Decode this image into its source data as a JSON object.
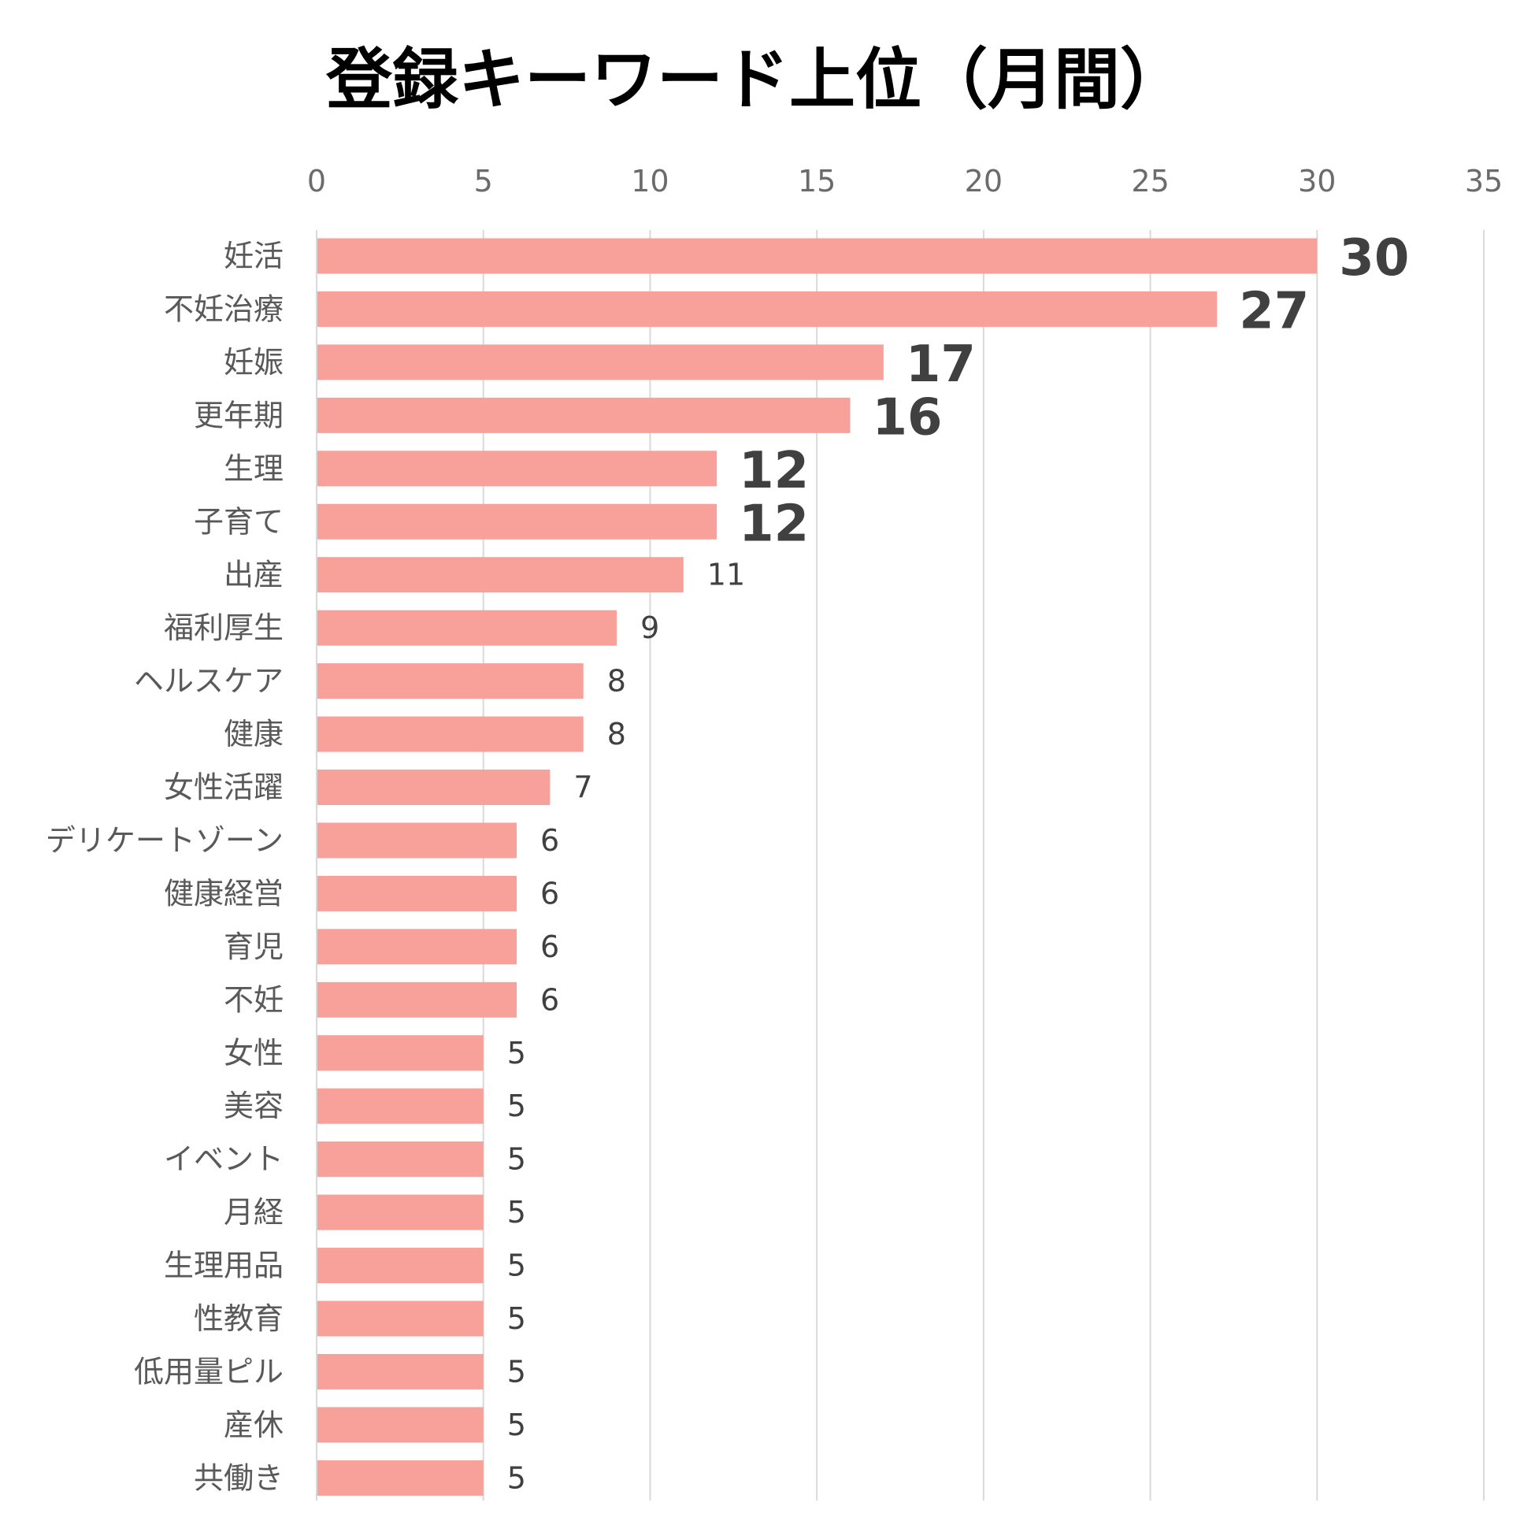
{
  "chart_data": {
    "type": "bar",
    "orientation": "horizontal",
    "title": "登録キーワード上位（月間）",
    "xlabel": "",
    "ylabel": "",
    "xlim": [
      0,
      35
    ],
    "x_ticks": [
      0,
      5,
      10,
      15,
      20,
      25,
      30,
      35
    ],
    "x_axis_position": "top",
    "grid": true,
    "legend": "none",
    "bar_color": "#f8a09a",
    "categories": [
      "妊活",
      "不妊治療",
      "妊娠",
      "更年期",
      "生理",
      "子育て",
      "出産",
      "福利厚生",
      "ヘルスケア",
      "健康",
      "女性活躍",
      "デリケートゾーン",
      "健康経営",
      "育児",
      "不妊",
      "女性",
      "美容",
      "イベント",
      "月経",
      "生理用品",
      "性教育",
      "低用量ピル",
      "産休",
      "共働き"
    ],
    "values": [
      30,
      27,
      17,
      16,
      12,
      12,
      11,
      9,
      8,
      8,
      7,
      6,
      6,
      6,
      6,
      5,
      5,
      5,
      5,
      5,
      5,
      5,
      5,
      5
    ],
    "emphasized_label_count": 6
  }
}
